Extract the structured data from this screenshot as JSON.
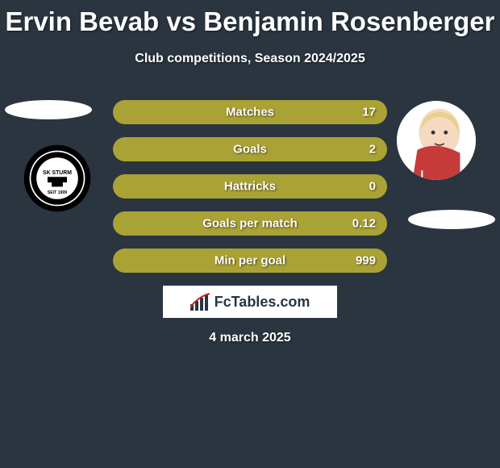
{
  "title": "Ervin Bevab vs Benjamin Rosenberger",
  "subtitle": "Club competitions, Season 2024/2025",
  "date": "4 march 2025",
  "logo_text": "FcTables.com",
  "background_color": "#2a3540",
  "stats": [
    {
      "label": "Matches",
      "value": "17",
      "fill_pct": 100,
      "color": "#aba235"
    },
    {
      "label": "Goals",
      "value": "2",
      "fill_pct": 100,
      "color": "#aba235"
    },
    {
      "label": "Hattricks",
      "value": "0",
      "fill_pct": 100,
      "color": "#aba235"
    },
    {
      "label": "Goals per match",
      "value": "0.12",
      "fill_pct": 100,
      "color": "#aba235"
    },
    {
      "label": "Min per goal",
      "value": "999",
      "fill_pct": 100,
      "color": "#aba235"
    }
  ]
}
